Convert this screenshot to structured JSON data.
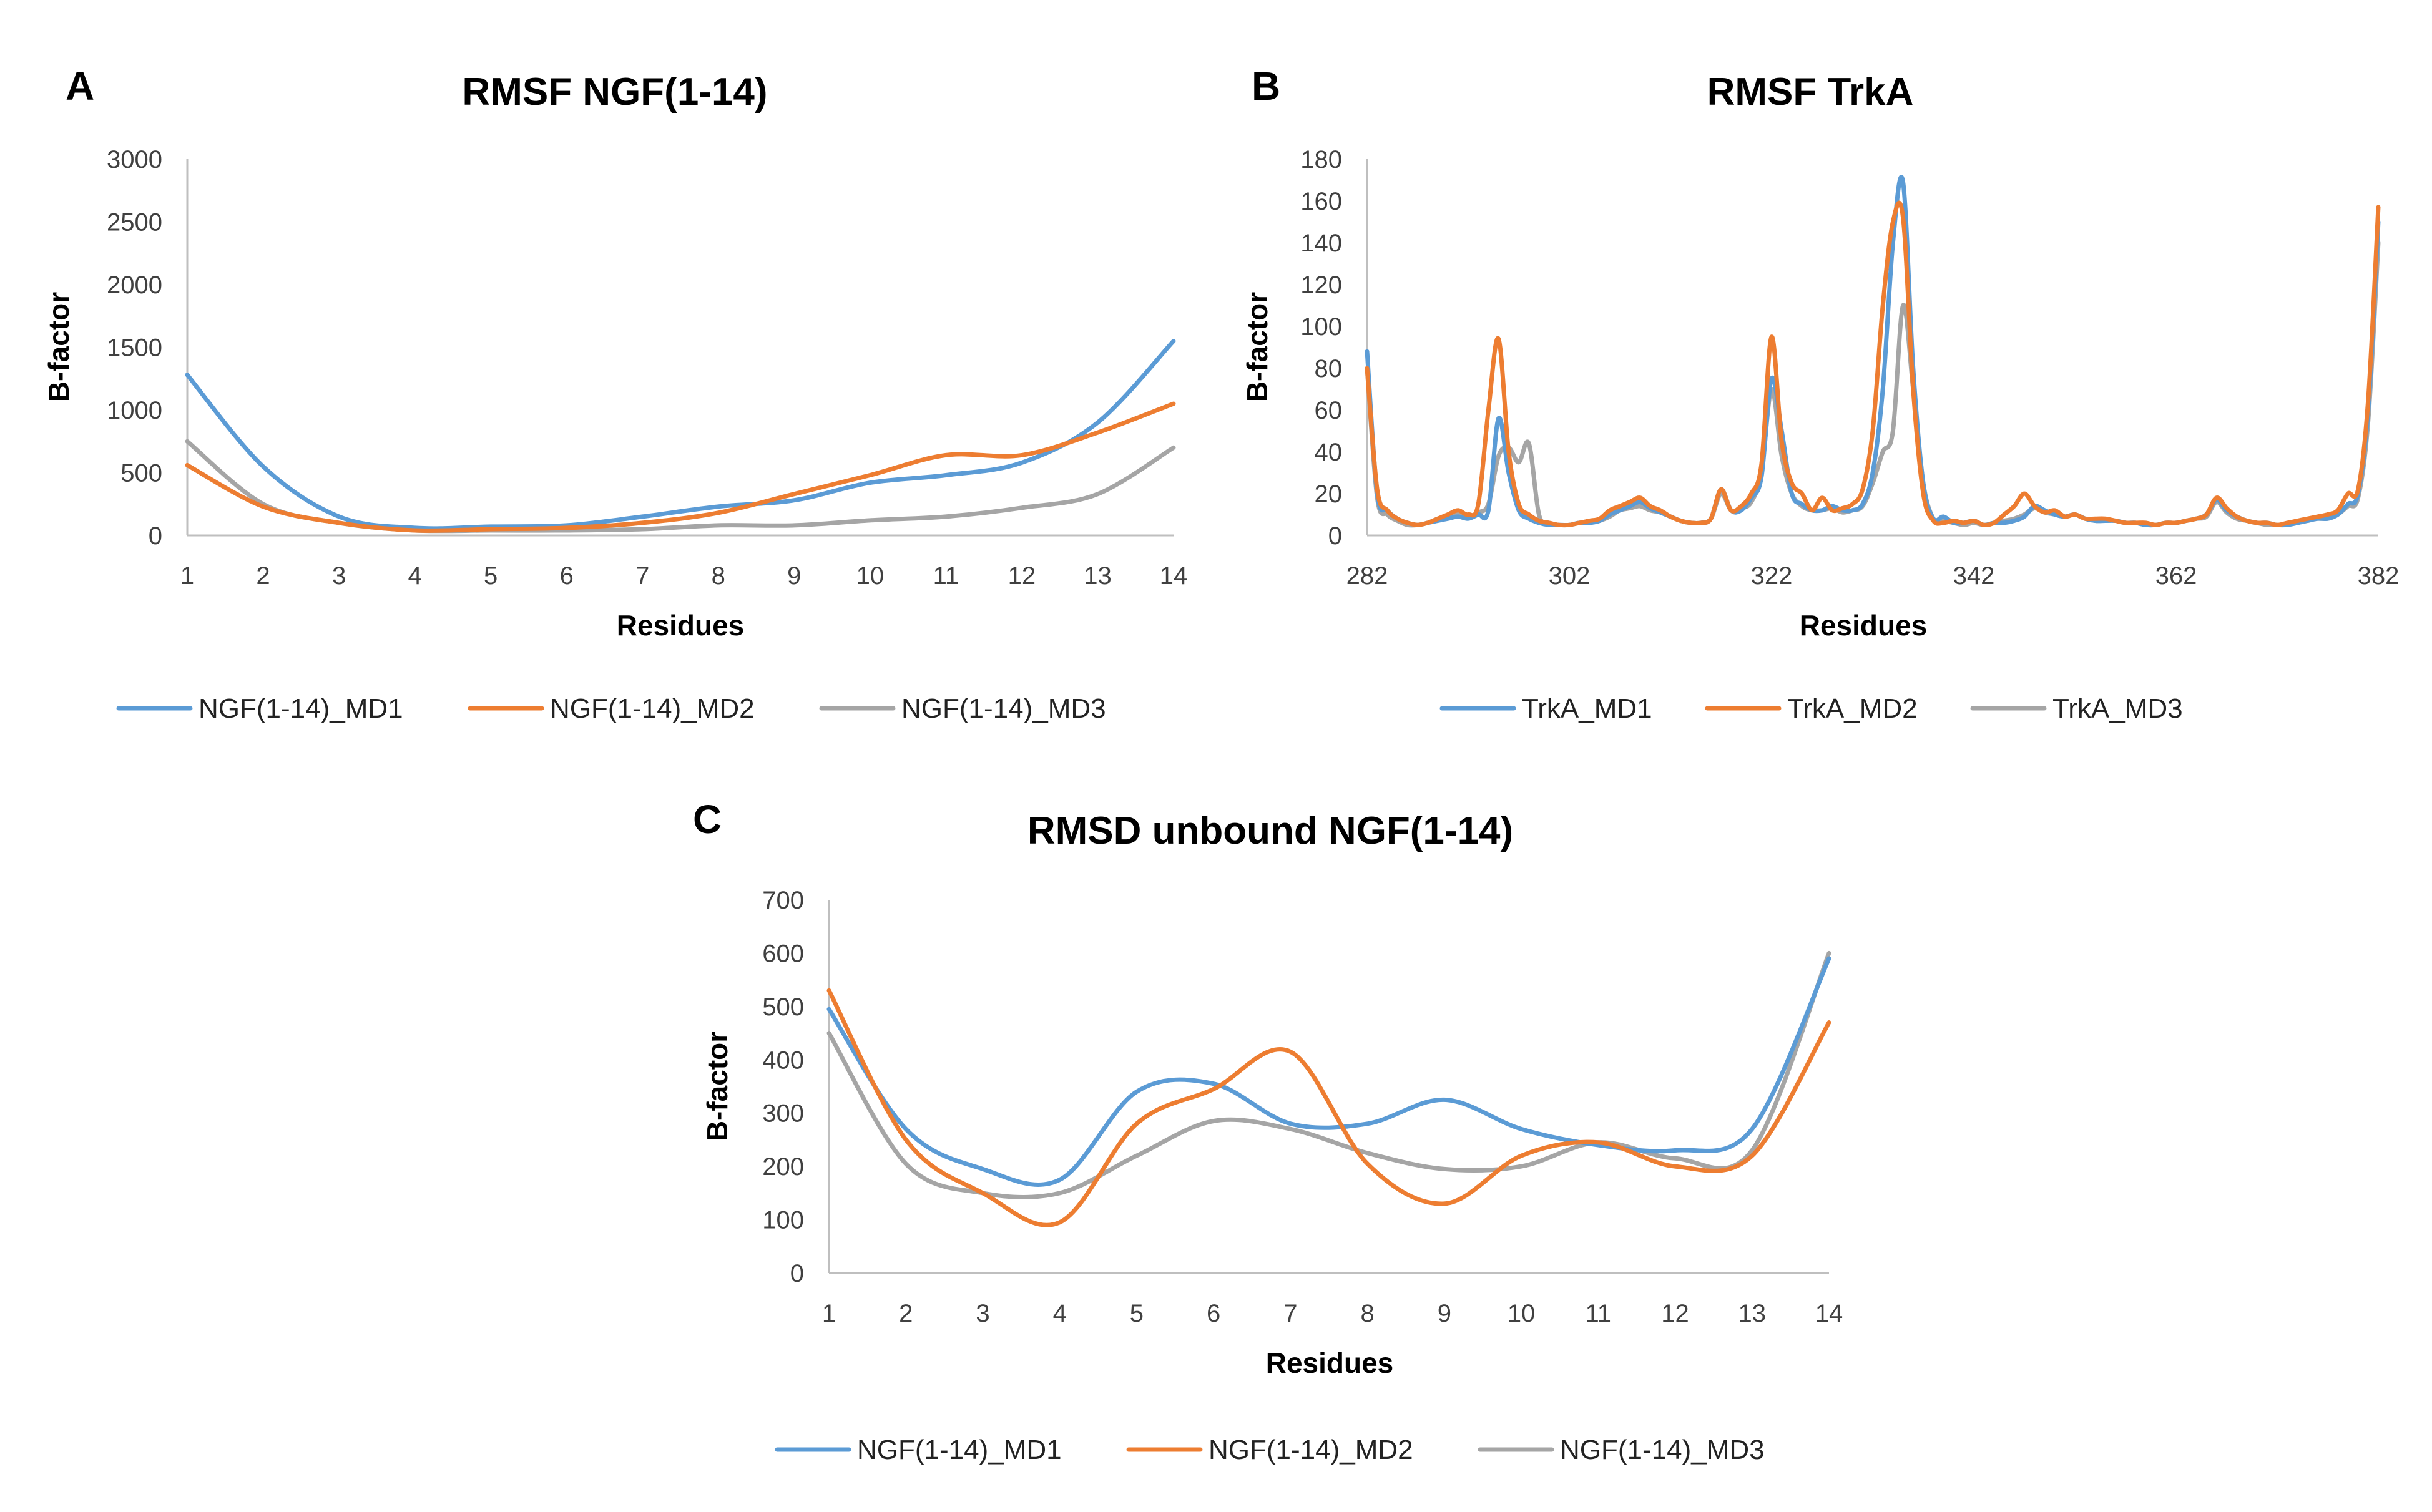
{
  "colors": {
    "md1": "#5b9bd5",
    "md2": "#ed7d31",
    "md3": "#a5a5a5"
  },
  "chart_data": [
    {
      "id": "A",
      "type": "line",
      "letter": "A",
      "title": "RMSF NGF(1-14)",
      "xlabel": "Residues",
      "ylabel": "B-factor",
      "xlim": [
        1,
        14
      ],
      "ylim": [
        0,
        3000
      ],
      "xticks": [
        1,
        2,
        3,
        4,
        5,
        6,
        7,
        8,
        9,
        10,
        11,
        12,
        13,
        14
      ],
      "yticks": [
        0,
        500,
        1000,
        1500,
        2000,
        2500,
        3000
      ],
      "x": [
        1,
        2,
        3,
        4,
        5,
        6,
        7,
        8,
        9,
        10,
        11,
        12,
        13,
        14
      ],
      "series": [
        {
          "name": "NGF(1-14)_MD1",
          "color": "#5b9bd5",
          "values": [
            1280,
            550,
            150,
            60,
            70,
            80,
            150,
            230,
            280,
            420,
            480,
            580,
            900,
            1550
          ]
        },
        {
          "name": "NGF(1-14)_MD2",
          "color": "#ed7d31",
          "values": [
            560,
            230,
            100,
            40,
            50,
            60,
            100,
            180,
            330,
            480,
            640,
            640,
            820,
            1050
          ]
        },
        {
          "name": "NGF(1-14)_MD3",
          "color": "#a5a5a5",
          "values": [
            750,
            250,
            100,
            40,
            40,
            40,
            50,
            80,
            80,
            120,
            150,
            220,
            330,
            700
          ]
        }
      ]
    },
    {
      "id": "B",
      "type": "line",
      "letter": "B",
      "title": "RMSF TrkA",
      "xlabel": "Residues",
      "ylabel": "B-factor",
      "xlim": [
        282,
        382
      ],
      "ylim": [
        0,
        180
      ],
      "xticks": [
        282,
        302,
        322,
        342,
        362,
        382
      ],
      "yticks": [
        0,
        20,
        40,
        60,
        80,
        100,
        120,
        140,
        160,
        180
      ],
      "series": [
        {
          "name": "TrkA_MD1",
          "color": "#5b9bd5",
          "x": [
            282,
            283,
            284,
            285,
            286,
            287,
            288,
            289,
            290,
            291,
            292,
            293,
            294,
            295,
            296,
            297,
            298,
            299,
            300,
            301,
            302,
            303,
            304,
            305,
            306,
            307,
            308,
            309,
            310,
            311,
            312,
            313,
            314,
            315,
            316,
            317,
            318,
            319,
            320,
            321,
            322,
            323,
            324,
            325,
            326,
            327,
            328,
            329,
            330,
            331,
            332,
            333,
            334,
            335,
            336,
            337,
            338,
            339,
            340,
            341,
            342,
            343,
            344,
            345,
            346,
            347,
            348,
            349,
            350,
            351,
            352,
            353,
            354,
            355,
            356,
            357,
            358,
            359,
            360,
            361,
            362,
            363,
            364,
            365,
            366,
            367,
            368,
            369,
            370,
            371,
            372,
            373,
            374,
            375,
            376,
            377,
            378,
            379,
            380,
            381,
            382
          ],
          "values": [
            88,
            20,
            12,
            8,
            6,
            5,
            6,
            7,
            8,
            9,
            8,
            10,
            12,
            56,
            30,
            12,
            8,
            6,
            5,
            5,
            5,
            6,
            6,
            7,
            10,
            12,
            14,
            16,
            13,
            11,
            9,
            7,
            6,
            6,
            8,
            22,
            12,
            12,
            18,
            28,
            75,
            50,
            20,
            15,
            12,
            12,
            14,
            12,
            12,
            15,
            30,
            70,
            140,
            169,
            80,
            25,
            8,
            9,
            6,
            6,
            7,
            5,
            6,
            6,
            7,
            9,
            14,
            12,
            10,
            9,
            10,
            8,
            7,
            7,
            7,
            6,
            6,
            5,
            5,
            6,
            6,
            7,
            8,
            10,
            17,
            12,
            9,
            7,
            6,
            6,
            5,
            5,
            6,
            7,
            8,
            8,
            10,
            15,
            20,
            60,
            150
          ]
        },
        {
          "name": "TrkA_MD2",
          "color": "#ed7d31",
          "x": [
            282,
            283,
            284,
            285,
            286,
            287,
            288,
            289,
            290,
            291,
            292,
            293,
            294,
            295,
            296,
            297,
            298,
            299,
            300,
            301,
            302,
            303,
            304,
            305,
            306,
            307,
            308,
            309,
            310,
            311,
            312,
            313,
            314,
            315,
            316,
            317,
            318,
            319,
            320,
            321,
            322,
            323,
            324,
            325,
            326,
            327,
            328,
            329,
            330,
            331,
            332,
            333,
            334,
            335,
            336,
            337,
            338,
            339,
            340,
            341,
            342,
            343,
            344,
            345,
            346,
            347,
            348,
            349,
            350,
            351,
            352,
            353,
            354,
            355,
            356,
            357,
            358,
            359,
            360,
            361,
            362,
            363,
            364,
            365,
            366,
            367,
            368,
            369,
            370,
            371,
            372,
            373,
            374,
            375,
            376,
            377,
            378,
            379,
            380,
            381,
            382
          ],
          "values": [
            80,
            22,
            12,
            8,
            6,
            5,
            6,
            8,
            10,
            12,
            10,
            15,
            60,
            94,
            40,
            15,
            10,
            7,
            6,
            5,
            5,
            6,
            7,
            8,
            12,
            14,
            16,
            18,
            14,
            12,
            9,
            7,
            6,
            6,
            8,
            22,
            12,
            14,
            20,
            34,
            95,
            45,
            25,
            20,
            12,
            18,
            12,
            13,
            15,
            22,
            50,
            110,
            150,
            152,
            70,
            20,
            7,
            6,
            7,
            6,
            7,
            5,
            6,
            10,
            14,
            20,
            14,
            11,
            12,
            9,
            10,
            8,
            8,
            8,
            7,
            6,
            6,
            6,
            5,
            6,
            6,
            7,
            8,
            10,
            18,
            13,
            9,
            7,
            6,
            6,
            5,
            6,
            7,
            8,
            9,
            10,
            12,
            20,
            22,
            65,
            157
          ]
        },
        {
          "name": "TrkA_MD3",
          "color": "#a5a5a5",
          "x": [
            282,
            283,
            284,
            285,
            286,
            287,
            288,
            289,
            290,
            291,
            292,
            293,
            294,
            295,
            296,
            297,
            298,
            299,
            300,
            301,
            302,
            303,
            304,
            305,
            306,
            307,
            308,
            309,
            310,
            311,
            312,
            313,
            314,
            315,
            316,
            317,
            318,
            319,
            320,
            321,
            322,
            323,
            324,
            325,
            326,
            327,
            328,
            329,
            330,
            331,
            332,
            333,
            334,
            335,
            336,
            337,
            338,
            339,
            340,
            341,
            342,
            343,
            344,
            345,
            346,
            347,
            348,
            349,
            350,
            351,
            352,
            353,
            354,
            355,
            356,
            357,
            358,
            359,
            360,
            361,
            362,
            363,
            364,
            365,
            366,
            367,
            368,
            369,
            370,
            371,
            372,
            373,
            374,
            375,
            376,
            377,
            378,
            379,
            380,
            381,
            382
          ],
          "values": [
            80,
            18,
            10,
            7,
            5,
            5,
            6,
            8,
            9,
            10,
            9,
            11,
            15,
            38,
            42,
            35,
            44,
            10,
            6,
            5,
            5,
            6,
            6,
            7,
            9,
            12,
            13,
            14,
            12,
            11,
            9,
            7,
            6,
            6,
            8,
            20,
            12,
            13,
            16,
            30,
            70,
            38,
            20,
            14,
            12,
            12,
            13,
            11,
            12,
            14,
            25,
            40,
            50,
            110,
            70,
            25,
            8,
            7,
            6,
            5,
            6,
            5,
            6,
            7,
            8,
            10,
            13,
            11,
            10,
            9,
            10,
            8,
            7,
            7,
            7,
            6,
            6,
            5,
            5,
            6,
            6,
            7,
            8,
            9,
            16,
            11,
            8,
            7,
            6,
            5,
            5,
            5,
            6,
            7,
            8,
            8,
            10,
            14,
            18,
            55,
            140
          ]
        }
      ]
    },
    {
      "id": "C",
      "type": "line",
      "letter": "C",
      "title": "RMSD unbound NGF(1-14)",
      "xlabel": "Residues",
      "ylabel": "B-factor",
      "xlim": [
        1,
        14
      ],
      "ylim": [
        0,
        700
      ],
      "xticks": [
        1,
        2,
        3,
        4,
        5,
        6,
        7,
        8,
        9,
        10,
        11,
        12,
        13,
        14
      ],
      "yticks": [
        0,
        100,
        200,
        300,
        400,
        500,
        600,
        700
      ],
      "x": [
        1,
        2,
        3,
        4,
        5,
        6,
        7,
        8,
        9,
        10,
        11,
        12,
        13,
        14
      ],
      "series": [
        {
          "name": "NGF(1-14)_MD1",
          "color": "#5b9bd5",
          "values": [
            495,
            270,
            195,
            175,
            340,
            355,
            280,
            280,
            325,
            270,
            240,
            230,
            270,
            590
          ]
        },
        {
          "name": "NGF(1-14)_MD2",
          "color": "#ed7d31",
          "values": [
            530,
            250,
            150,
            95,
            280,
            345,
            415,
            205,
            130,
            220,
            245,
            200,
            220,
            470
          ]
        },
        {
          "name": "NGF(1-14)_MD3",
          "color": "#a5a5a5",
          "values": [
            450,
            205,
            150,
            150,
            220,
            285,
            270,
            225,
            195,
            200,
            245,
            215,
            230,
            600
          ]
        }
      ]
    }
  ]
}
